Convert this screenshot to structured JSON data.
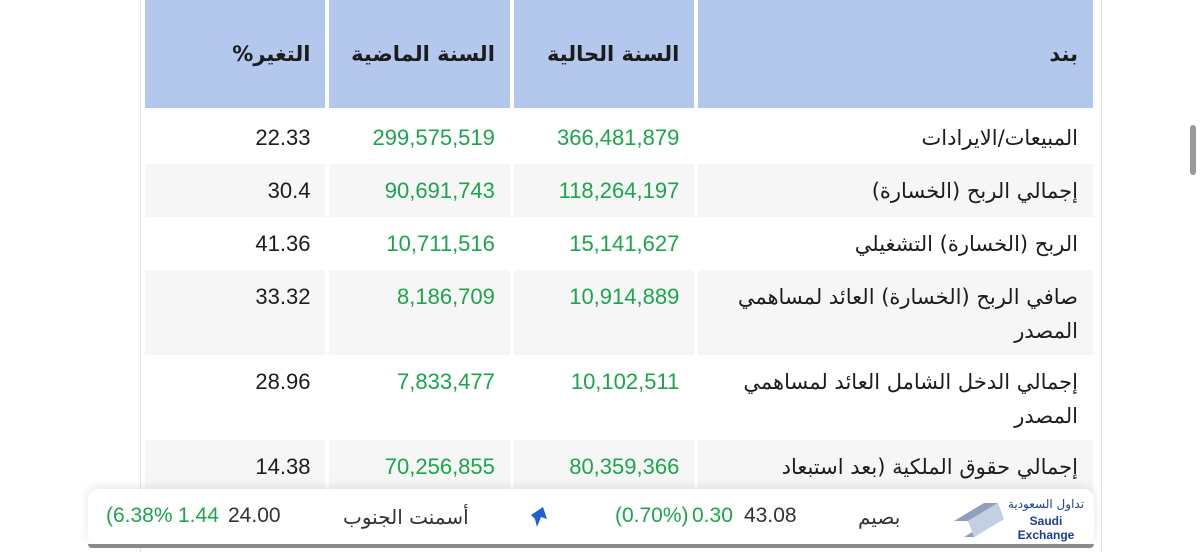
{
  "table": {
    "headers": {
      "item": "بند",
      "current_year": "السنة الحالية",
      "previous_year": "السنة الماضية",
      "change": "التغير%"
    },
    "rows": [
      {
        "item": "المبيعات/الايرادات",
        "current": "366,481,879",
        "previous": "299,575,519",
        "change": "22.33"
      },
      {
        "item": "إجمالي الربح (الخسارة)",
        "current": "118,264,197",
        "previous": "90,691,743",
        "change": "30.4"
      },
      {
        "item": "الربح (الخسارة) التشغيلي",
        "current": "15,141,627",
        "previous": "10,711,516",
        "change": "41.36"
      },
      {
        "item": "صافي الربح (الخسارة) العائد لمساهمي المصدر",
        "current": "10,914,889",
        "previous": "8,186,709",
        "change": "33.32"
      },
      {
        "item": "إجمالي الدخل الشامل العائد لمساهمي المصدر",
        "current": "10,102,511",
        "previous": "7,833,477",
        "change": "28.96"
      },
      {
        "item": "إجمالي حقوق الملكية (بعد استبعاد",
        "current": "80,359,366",
        "previous": "70,256,855",
        "change": "14.38"
      }
    ]
  },
  "ticker": {
    "logo_ar": "تداول السعودية",
    "logo_en": "Saudi Exchange",
    "item1_name_partial": "بصيم",
    "item1_price": "43.08",
    "item1_change": "0.30",
    "item1_change_pct": "(0.70%)",
    "item2_name": "أسمنت الجنوب",
    "item2_price": "24.00",
    "item2_change": "1.44",
    "item2_change_pct_partial": "(6.38%",
    "icon": "up-arrow-icon"
  },
  "colors": {
    "header_bg": "#b4c7ec",
    "positive": "#1aa64a",
    "brand": "#1b3f94"
  }
}
